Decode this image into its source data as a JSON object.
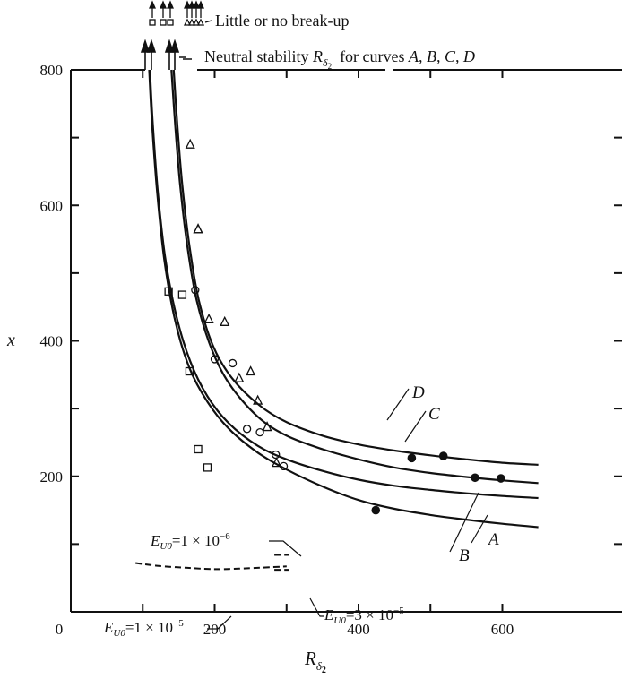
{
  "chart_data": {
    "type": "scatter",
    "title": "",
    "xlabel": "R",
    "xlabel_sub": "δ",
    "xlabel_subsub": "2",
    "ylabel": "x",
    "xlim": [
      0,
      650
    ],
    "ylim": [
      0,
      800
    ],
    "x_ticks": [
      0,
      200,
      400,
      600
    ],
    "y_ticks": [
      200,
      400,
      600,
      800
    ],
    "top_labels": {
      "breakup": "Little or no break-up",
      "neutral_prefix": "Neutral stability ",
      "neutral_symbol": "R",
      "neutral_sub": "δ",
      "neutral_subsub": "2",
      "neutral_suffix": "  for curves ",
      "neutral_curves": "A, B, C, D"
    },
    "curves": [
      {
        "name": "A",
        "x": [
          109,
          113,
          120,
          130,
          145,
          165,
          190,
          220,
          260,
          300,
          350,
          400,
          450,
          500,
          550,
          600,
          650
        ],
        "y": [
          800,
          720,
          620,
          520,
          430,
          360,
          310,
          270,
          235,
          210,
          185,
          165,
          152,
          143,
          136,
          130,
          125
        ]
      },
      {
        "name": "B",
        "x": [
          110,
          114,
          121,
          131,
          146,
          166,
          190,
          220,
          260,
          300,
          350,
          400,
          450,
          500,
          550,
          600,
          650
        ],
        "y": [
          800,
          720,
          620,
          525,
          440,
          370,
          318,
          278,
          245,
          225,
          208,
          195,
          186,
          180,
          175,
          171,
          168
        ]
      },
      {
        "name": "C",
        "x": [
          140,
          145,
          152,
          162,
          175,
          195,
          220,
          260,
          300,
          350,
          400,
          450,
          500,
          550,
          600,
          650
        ],
        "y": [
          800,
          720,
          630,
          540,
          460,
          390,
          337,
          288,
          260,
          240,
          225,
          213,
          205,
          199,
          194,
          190
        ]
      },
      {
        "name": "D",
        "x": [
          143,
          148,
          155,
          165,
          178,
          198,
          224,
          262,
          300,
          350,
          400,
          450,
          500,
          550,
          600,
          650
        ],
        "y": [
          800,
          720,
          630,
          540,
          460,
          392,
          345,
          305,
          280,
          260,
          247,
          238,
          231,
          225,
          220,
          217
        ]
      }
    ],
    "curve_labels": [
      "A",
      "B",
      "C",
      "D"
    ],
    "E_lines": [
      {
        "label_base": "E",
        "label_sub": "U0",
        "label_eq": "=1 × 10",
        "label_exp": "−6",
        "x": [
          283,
          303
        ],
        "y": [
          84,
          84
        ]
      },
      {
        "label_base": "E",
        "label_sub": "U0",
        "label_eq": "=1 × 10",
        "label_exp": "−5",
        "x": [
          90,
          120,
          160,
          200,
          240,
          280,
          300
        ],
        "y": [
          72,
          68,
          65,
          63,
          64,
          66,
          67
        ]
      },
      {
        "label_base": "E",
        "label_sub": "U0",
        "label_eq": "=3 × 10",
        "label_exp": "−5",
        "x": [
          283,
          303
        ],
        "y": [
          62,
          62
        ]
      }
    ],
    "series": [
      {
        "marker": "triangle-open",
        "x": [
          166,
          177,
          177,
          192,
          214,
          234,
          250,
          260,
          273,
          286
        ],
        "y": [
          690,
          565,
          565,
          432,
          428,
          345,
          355,
          312,
          273,
          220
        ]
      },
      {
        "marker": "circle-open",
        "x": [
          173,
          200,
          225,
          245,
          263,
          285,
          296
        ],
        "y": [
          475,
          373,
          367,
          270,
          265,
          232,
          215
        ]
      },
      {
        "marker": "square-open",
        "x": [
          136,
          155,
          165,
          177,
          190
        ],
        "y": [
          473,
          468,
          355,
          240,
          213
        ]
      },
      {
        "marker": "circle-filled",
        "x": [
          424,
          474,
          518,
          562,
          598
        ],
        "y": [
          150,
          227,
          230,
          198,
          197
        ]
      }
    ],
    "grid": false,
    "legend": "none"
  }
}
